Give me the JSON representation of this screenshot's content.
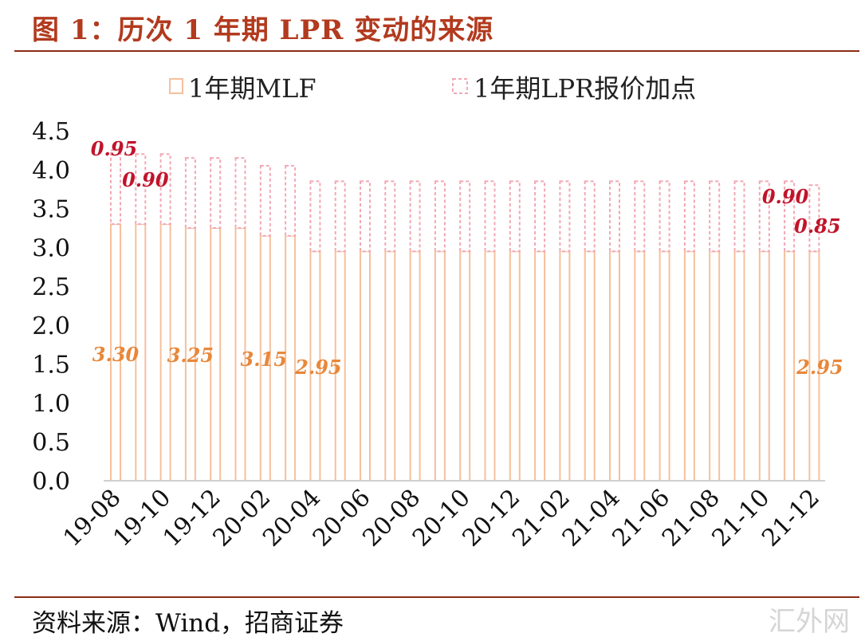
{
  "title": "图 1：历次 1 年期 LPR 变动的来源",
  "source": "资料来源：Wind，招商证券",
  "watermark": "汇外网",
  "colors": {
    "mlf": "#f6c09b",
    "spread": "#f2a8b4",
    "title": "#b23a1e",
    "rule": "#8b2d14",
    "mlf_label": "#e8873a",
    "spread_label": "#c0142b"
  },
  "chart_data": {
    "type": "bar",
    "stacked": true,
    "categories": [
      "19-08",
      "19-09",
      "19-10",
      "19-11",
      "19-12",
      "20-01",
      "20-02",
      "20-03",
      "20-04",
      "20-05",
      "20-06",
      "20-07",
      "20-08",
      "20-09",
      "20-10",
      "20-11",
      "20-12",
      "21-01",
      "21-02",
      "21-03",
      "21-04",
      "21-05",
      "21-06",
      "21-07",
      "21-08",
      "21-09",
      "21-10",
      "21-11",
      "21-12"
    ],
    "tick_labels": [
      "19-08",
      "19-10",
      "19-12",
      "20-02",
      "20-04",
      "20-06",
      "20-08",
      "20-10",
      "20-12",
      "21-02",
      "21-04",
      "21-06",
      "21-08",
      "21-10",
      "21-12"
    ],
    "series": [
      {
        "name": "1年期MLF",
        "values": [
          3.3,
          3.3,
          3.3,
          3.25,
          3.25,
          3.25,
          3.15,
          3.15,
          2.95,
          2.95,
          2.95,
          2.95,
          2.95,
          2.95,
          2.95,
          2.95,
          2.95,
          2.95,
          2.95,
          2.95,
          2.95,
          2.95,
          2.95,
          2.95,
          2.95,
          2.95,
          2.95,
          2.95,
          2.95
        ]
      },
      {
        "name": "1年期LPR报价加点",
        "values": [
          0.95,
          0.9,
          0.9,
          0.9,
          0.9,
          0.9,
          0.9,
          0.9,
          0.9,
          0.9,
          0.9,
          0.9,
          0.9,
          0.9,
          0.9,
          0.9,
          0.9,
          0.9,
          0.9,
          0.9,
          0.9,
          0.9,
          0.9,
          0.9,
          0.9,
          0.9,
          0.9,
          0.9,
          0.85
        ]
      }
    ],
    "mlf_labels": [
      {
        "index": 0,
        "text": "3.30"
      },
      {
        "index": 3,
        "text": "3.25"
      },
      {
        "index": 6,
        "text": "3.15"
      },
      {
        "index": 8,
        "text": "2.95"
      },
      {
        "index": 28,
        "text": "2.95"
      }
    ],
    "spread_labels": [
      {
        "index": 0,
        "text": "0.95"
      },
      {
        "index": 1,
        "text": "0.90"
      },
      {
        "index": 27,
        "text": "0.90"
      },
      {
        "index": 28,
        "text": "0.85"
      }
    ],
    "yticks": [
      "0.0",
      "0.5",
      "1.0",
      "1.5",
      "2.0",
      "2.5",
      "3.0",
      "3.5",
      "4.0",
      "4.5"
    ],
    "ylim": [
      0,
      4.5
    ],
    "legend_position": "top",
    "grid": false
  }
}
